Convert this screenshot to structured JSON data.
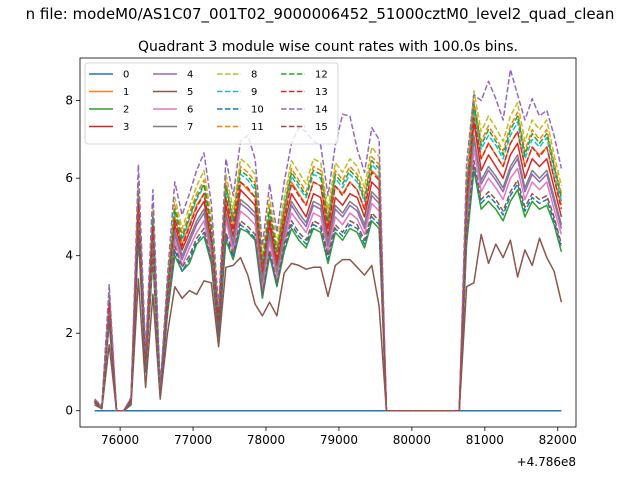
{
  "suptitle": "n file: modeM0/AS1C07_001T02_9000006452_51000cztM0_level2_quad_clean",
  "chart_data": {
    "type": "line",
    "title": "Quadrant 3 module wise count rates with 100.0s bins.",
    "xlabel": "",
    "ylabel": "",
    "x_offset_label": "+4.786e8",
    "xlim": [
      75450,
      82250
    ],
    "ylim": [
      -0.42,
      9.1
    ],
    "xticks": [
      76000,
      77000,
      78000,
      79000,
      80000,
      81000,
      82000
    ],
    "xtick_labels": [
      "76000",
      "77000",
      "78000",
      "79000",
      "80000",
      "81000",
      "82000"
    ],
    "yticks": [
      0,
      2,
      4,
      6,
      8
    ],
    "ytick_labels": [
      "0",
      "2",
      "4",
      "6",
      "8"
    ],
    "legend_position": "top-left",
    "x": [
      75650,
      75750,
      75850,
      75950,
      76050,
      76150,
      76250,
      76350,
      76450,
      76550,
      76650,
      76750,
      76850,
      76950,
      77050,
      77150,
      77250,
      77350,
      77450,
      77550,
      77650,
      77750,
      77850,
      77950,
      78050,
      78150,
      78250,
      78350,
      78450,
      78550,
      78650,
      78750,
      78850,
      78950,
      79050,
      79150,
      79250,
      79350,
      79450,
      79550,
      79650,
      79750,
      79850,
      79950,
      80050,
      80150,
      80250,
      80350,
      80450,
      80550,
      80650,
      80750,
      80850,
      80950,
      81050,
      81150,
      81250,
      81350,
      81450,
      81550,
      81650,
      81750,
      81850,
      81950,
      82050
    ],
    "series": [
      {
        "name": "0",
        "color": "#1f77b4",
        "dash": "solid",
        "values": [
          0,
          0,
          0,
          0,
          0,
          0,
          0,
          0,
          0,
          0,
          0,
          0,
          0,
          0,
          0,
          0,
          0,
          0,
          0,
          0,
          0,
          0,
          0,
          0,
          0,
          0,
          0,
          0,
          0,
          0,
          0,
          0,
          0,
          0,
          0,
          0,
          0,
          0,
          0,
          0,
          0,
          0,
          0,
          0,
          0,
          0,
          0,
          0,
          0,
          0,
          0,
          0,
          0,
          0,
          0,
          0,
          0,
          0,
          0,
          0,
          0,
          0,
          0,
          0,
          0
        ]
      },
      {
        "name": "1",
        "color": "#ff7f0e",
        "dash": "solid",
        "values": [
          0.25,
          0.1,
          2.85,
          0,
          0,
          0.3,
          5.4,
          1.3,
          4.85,
          0.5,
          3.05,
          5.0,
          4.3,
          4.8,
          5.3,
          5.6,
          4.5,
          2.3,
          5.5,
          4.7,
          5.9,
          5.7,
          5.5,
          3.6,
          5.0,
          3.9,
          5.0,
          5.9,
          5.6,
          5.3,
          5.9,
          5.8,
          4.7,
          5.8,
          5.6,
          5.9,
          5.7,
          5.2,
          6.2,
          6.0,
          0,
          0,
          0,
          0,
          0,
          0,
          0,
          0,
          0,
          0,
          0,
          5.4,
          7.8,
          6.5,
          6.9,
          6.6,
          6.3,
          6.9,
          7.2,
          6.3,
          6.8,
          6.6,
          6.8,
          6.0,
          5.3
        ]
      },
      {
        "name": "2",
        "color": "#2ca02c",
        "dash": "solid",
        "values": [
          0.2,
          0.08,
          2.3,
          0,
          0,
          0.22,
          4.5,
          1.0,
          3.9,
          0.4,
          2.5,
          4.0,
          3.6,
          3.8,
          4.3,
          4.5,
          3.8,
          1.9,
          4.4,
          3.9,
          4.7,
          4.6,
          4.4,
          2.9,
          4.0,
          3.2,
          4.1,
          4.7,
          4.4,
          4.2,
          4.7,
          4.6,
          3.8,
          4.6,
          4.4,
          4.7,
          4.6,
          4.2,
          4.9,
          4.7,
          0,
          0,
          0,
          0,
          0,
          0,
          0,
          0,
          0,
          0,
          0,
          4.3,
          6.2,
          5.2,
          5.4,
          5.2,
          4.9,
          5.4,
          5.7,
          5.0,
          5.4,
          5.2,
          5.3,
          4.8,
          4.1
        ]
      },
      {
        "name": "3",
        "color": "#d62728",
        "dash": "solid",
        "values": [
          0.24,
          0.1,
          2.7,
          0,
          0,
          0.28,
          5.2,
          1.2,
          4.6,
          0.48,
          2.9,
          4.8,
          4.15,
          4.6,
          5.1,
          5.4,
          4.35,
          2.2,
          5.3,
          4.5,
          5.7,
          5.5,
          5.3,
          3.45,
          4.8,
          3.75,
          4.8,
          5.6,
          5.3,
          5.0,
          5.6,
          5.5,
          4.5,
          5.5,
          5.3,
          5.6,
          5.5,
          5.0,
          5.9,
          5.7,
          0,
          0,
          0,
          0,
          0,
          0,
          0,
          0,
          0,
          0,
          0,
          5.2,
          7.45,
          6.2,
          6.6,
          6.3,
          6.0,
          6.6,
          6.9,
          6.0,
          6.5,
          6.3,
          6.5,
          5.75,
          5.0
        ]
      },
      {
        "name": "4",
        "color": "#9467bd",
        "dash": "solid",
        "values": [
          0.23,
          0.1,
          2.5,
          0,
          0,
          0.26,
          4.9,
          1.15,
          4.35,
          0.45,
          2.75,
          4.55,
          3.9,
          4.35,
          4.8,
          5.1,
          4.1,
          2.1,
          5.0,
          4.25,
          5.35,
          5.2,
          5.0,
          3.25,
          4.5,
          3.55,
          4.5,
          5.3,
          5.0,
          4.75,
          5.3,
          5.2,
          4.25,
          5.2,
          5.0,
          5.3,
          5.15,
          4.7,
          5.55,
          5.35,
          0,
          0,
          0,
          0,
          0,
          0,
          0,
          0,
          0,
          0,
          0,
          4.9,
          7.0,
          5.85,
          6.2,
          5.95,
          5.65,
          6.2,
          6.5,
          5.65,
          6.1,
          5.9,
          6.1,
          5.4,
          4.7
        ]
      },
      {
        "name": "5",
        "color": "#8c564b",
        "dash": "solid",
        "values": [
          0.15,
          0.05,
          1.7,
          0,
          0,
          0.15,
          3.4,
          0.6,
          3.0,
          0.3,
          2.0,
          3.2,
          2.9,
          3.1,
          3.0,
          3.35,
          3.3,
          1.65,
          3.7,
          3.75,
          3.95,
          3.5,
          2.75,
          2.45,
          2.8,
          2.45,
          3.55,
          3.8,
          3.75,
          3.65,
          3.7,
          3.7,
          2.95,
          3.75,
          3.9,
          3.9,
          3.7,
          3.5,
          3.75,
          2.7,
          0,
          0,
          0,
          0,
          0,
          0,
          0,
          0,
          0,
          0,
          0,
          3.2,
          3.3,
          4.55,
          3.8,
          4.3,
          3.95,
          4.4,
          3.45,
          4.15,
          3.75,
          4.45,
          3.95,
          3.6,
          2.8
        ]
      },
      {
        "name": "6",
        "color": "#e377c2",
        "dash": "solid",
        "values": [
          0.22,
          0.09,
          2.5,
          0,
          0,
          0.25,
          4.8,
          1.1,
          4.2,
          0.42,
          2.65,
          4.4,
          3.75,
          4.2,
          4.6,
          4.9,
          4.0,
          2.0,
          4.9,
          4.1,
          5.15,
          5.0,
          4.8,
          3.15,
          4.35,
          3.45,
          4.35,
          5.1,
          4.85,
          4.6,
          5.1,
          5.0,
          4.1,
          5.0,
          4.8,
          5.1,
          4.95,
          4.55,
          5.35,
          5.15,
          0,
          0,
          0,
          0,
          0,
          0,
          0,
          0,
          0,
          0,
          0,
          4.75,
          6.75,
          5.65,
          6.0,
          5.75,
          5.45,
          6.0,
          6.25,
          5.45,
          5.9,
          5.7,
          5.9,
          5.2,
          4.55
        ]
      },
      {
        "name": "7",
        "color": "#7f7f7f",
        "dash": "solid",
        "values": [
          0.23,
          0.1,
          2.55,
          0,
          0,
          0.27,
          5.0,
          1.15,
          4.45,
          0.46,
          2.8,
          4.65,
          4.0,
          4.45,
          4.9,
          5.2,
          4.2,
          2.15,
          5.1,
          4.35,
          5.45,
          5.3,
          5.1,
          3.35,
          4.6,
          3.6,
          4.6,
          5.4,
          5.1,
          4.85,
          5.4,
          5.3,
          4.35,
          5.3,
          5.1,
          5.4,
          5.25,
          4.8,
          5.65,
          5.45,
          0,
          0,
          0,
          0,
          0,
          0,
          0,
          0,
          0,
          0,
          0,
          5.0,
          7.1,
          5.95,
          6.3,
          6.05,
          5.75,
          6.3,
          6.6,
          5.75,
          6.2,
          6.0,
          6.2,
          5.5,
          4.8
        ]
      },
      {
        "name": "8",
        "color": "#bcbd22",
        "dash": "dashed",
        "values": [
          0.28,
          0.12,
          3.1,
          0,
          0,
          0.33,
          5.9,
          1.4,
          5.3,
          0.55,
          3.3,
          5.5,
          4.7,
          5.25,
          5.8,
          6.2,
          5.0,
          2.5,
          6.1,
          5.2,
          6.5,
          6.35,
          6.1,
          4.0,
          5.5,
          4.3,
          5.5,
          6.45,
          6.15,
          5.85,
          6.5,
          6.4,
          5.2,
          6.4,
          6.15,
          6.5,
          6.3,
          5.75,
          6.8,
          6.55,
          0,
          0,
          0,
          0,
          0,
          0,
          0,
          0,
          0,
          0,
          0,
          6.0,
          8.25,
          7.2,
          7.6,
          7.3,
          6.95,
          7.6,
          7.95,
          6.95,
          7.5,
          7.25,
          7.5,
          6.6,
          5.8
        ]
      },
      {
        "name": "9",
        "color": "#17becf",
        "dash": "dashed",
        "values": [
          0.26,
          0.11,
          2.9,
          0,
          0,
          0.3,
          5.55,
          1.3,
          4.95,
          0.52,
          3.1,
          5.15,
          4.4,
          4.95,
          5.45,
          5.8,
          4.7,
          2.35,
          5.7,
          4.85,
          6.1,
          5.95,
          5.7,
          3.75,
          5.15,
          4.05,
          5.15,
          6.05,
          5.75,
          5.5,
          6.1,
          6.0,
          4.85,
          6.0,
          5.75,
          6.1,
          5.9,
          5.4,
          6.35,
          6.15,
          0,
          0,
          0,
          0,
          0,
          0,
          0,
          0,
          0,
          0,
          0,
          5.6,
          7.75,
          6.75,
          7.1,
          6.85,
          6.5,
          7.1,
          7.45,
          6.5,
          7.0,
          6.8,
          7.05,
          6.2,
          5.4
        ]
      },
      {
        "name": "10",
        "color": "#1f77b4",
        "dash": "dashed",
        "values": [
          0.2,
          0.08,
          2.3,
          0,
          0,
          0.22,
          4.55,
          1.0,
          3.95,
          0.4,
          2.55,
          4.15,
          3.6,
          3.9,
          4.35,
          4.6,
          3.85,
          1.95,
          4.5,
          3.95,
          4.8,
          4.65,
          4.45,
          2.95,
          4.05,
          3.25,
          4.2,
          4.8,
          4.5,
          4.3,
          4.8,
          4.7,
          3.9,
          4.7,
          4.5,
          4.8,
          4.7,
          4.3,
          5.0,
          4.8,
          0,
          0,
          0,
          0,
          0,
          0,
          0,
          0,
          0,
          0,
          0,
          4.45,
          6.3,
          5.35,
          5.55,
          5.35,
          5.05,
          5.55,
          5.85,
          5.15,
          5.5,
          5.35,
          5.45,
          4.9,
          4.2
        ]
      },
      {
        "name": "11",
        "color": "#ff7f0e",
        "dash": "dashed",
        "values": [
          0.27,
          0.11,
          3.0,
          0,
          0,
          0.31,
          5.7,
          1.35,
          5.1,
          0.53,
          3.2,
          5.3,
          4.55,
          5.1,
          5.6,
          5.95,
          4.85,
          2.45,
          5.9,
          5.0,
          6.3,
          6.15,
          5.9,
          3.85,
          5.3,
          4.15,
          5.3,
          6.25,
          5.95,
          5.65,
          6.3,
          6.2,
          5.0,
          6.2,
          5.95,
          6.3,
          6.1,
          5.55,
          6.55,
          6.35,
          0,
          0,
          0,
          0,
          0,
          0,
          0,
          0,
          0,
          0,
          0,
          5.8,
          8.0,
          6.95,
          7.35,
          7.05,
          6.7,
          7.35,
          7.7,
          6.7,
          7.25,
          7.0,
          7.25,
          6.4,
          5.6
        ]
      },
      {
        "name": "12",
        "color": "#2ca02c",
        "dash": "dashed",
        "values": [
          0.26,
          0.11,
          2.95,
          0,
          0,
          0.3,
          5.6,
          1.3,
          5.0,
          0.52,
          3.15,
          5.2,
          4.45,
          5.0,
          5.5,
          5.85,
          4.75,
          2.4,
          5.8,
          4.9,
          6.2,
          6.05,
          5.8,
          3.8,
          5.2,
          4.1,
          5.2,
          6.15,
          5.85,
          5.55,
          6.2,
          6.1,
          4.9,
          6.1,
          5.85,
          6.2,
          6.0,
          5.45,
          6.45,
          6.25,
          0,
          0,
          0,
          0,
          0,
          0,
          0,
          0,
          0,
          0,
          0,
          5.7,
          7.9,
          6.85,
          7.25,
          6.95,
          6.6,
          7.25,
          7.6,
          6.6,
          7.15,
          6.9,
          7.15,
          6.3,
          5.5
        ]
      },
      {
        "name": "13",
        "color": "#d62728",
        "dash": "dashed",
        "values": [
          0.25,
          0.1,
          2.8,
          0,
          0,
          0.29,
          5.35,
          1.25,
          4.75,
          0.5,
          3.0,
          4.95,
          4.25,
          4.75,
          5.25,
          5.6,
          4.5,
          2.3,
          5.5,
          4.65,
          5.9,
          5.75,
          5.5,
          3.6,
          4.95,
          3.9,
          4.95,
          5.85,
          5.55,
          5.3,
          5.9,
          5.8,
          4.7,
          5.8,
          5.55,
          5.9,
          5.7,
          5.2,
          6.15,
          5.95,
          0,
          0,
          0,
          0,
          0,
          0,
          0,
          0,
          0,
          0,
          0,
          5.45,
          7.55,
          6.5,
          6.9,
          6.6,
          6.3,
          6.9,
          7.2,
          6.3,
          6.8,
          6.55,
          6.8,
          6.0,
          5.2
        ]
      },
      {
        "name": "14",
        "color": "#9467bd",
        "dash": "dashed",
        "values": [
          0.3,
          0.12,
          3.25,
          0,
          0,
          0.35,
          6.35,
          1.5,
          5.7,
          0.6,
          3.5,
          5.9,
          5.05,
          5.6,
          6.2,
          6.65,
          5.35,
          2.65,
          6.5,
          5.55,
          6.95,
          7.1,
          6.5,
          4.25,
          5.85,
          4.6,
          5.9,
          6.9,
          7.3,
          7.2,
          6.95,
          6.85,
          5.55,
          6.85,
          7.65,
          7.6,
          6.75,
          6.15,
          7.3,
          7.0,
          0,
          0,
          0,
          0,
          0,
          0,
          0,
          0,
          0,
          0,
          0,
          6.4,
          8.15,
          8.0,
          8.5,
          8.05,
          7.5,
          8.8,
          8.15,
          7.5,
          8.05,
          7.6,
          7.75,
          7.1,
          6.25
        ]
      },
      {
        "name": "15",
        "color": "#8c564b",
        "dash": "dashed",
        "values": [
          0.21,
          0.08,
          2.35,
          0,
          0,
          0.24,
          4.65,
          1.05,
          4.05,
          0.42,
          2.6,
          4.25,
          3.7,
          4.0,
          4.45,
          4.7,
          3.9,
          2.0,
          4.6,
          4.05,
          4.9,
          4.75,
          4.55,
          3.0,
          4.15,
          3.3,
          4.3,
          4.9,
          4.6,
          4.4,
          4.9,
          4.8,
          4.0,
          4.8,
          4.6,
          4.9,
          4.8,
          4.4,
          5.1,
          4.9,
          0,
          0,
          0,
          0,
          0,
          0,
          0,
          0,
          0,
          0,
          0,
          4.55,
          6.45,
          5.45,
          5.65,
          5.45,
          5.15,
          5.65,
          5.95,
          5.25,
          5.6,
          5.45,
          5.55,
          5.0,
          4.3
        ]
      }
    ]
  }
}
